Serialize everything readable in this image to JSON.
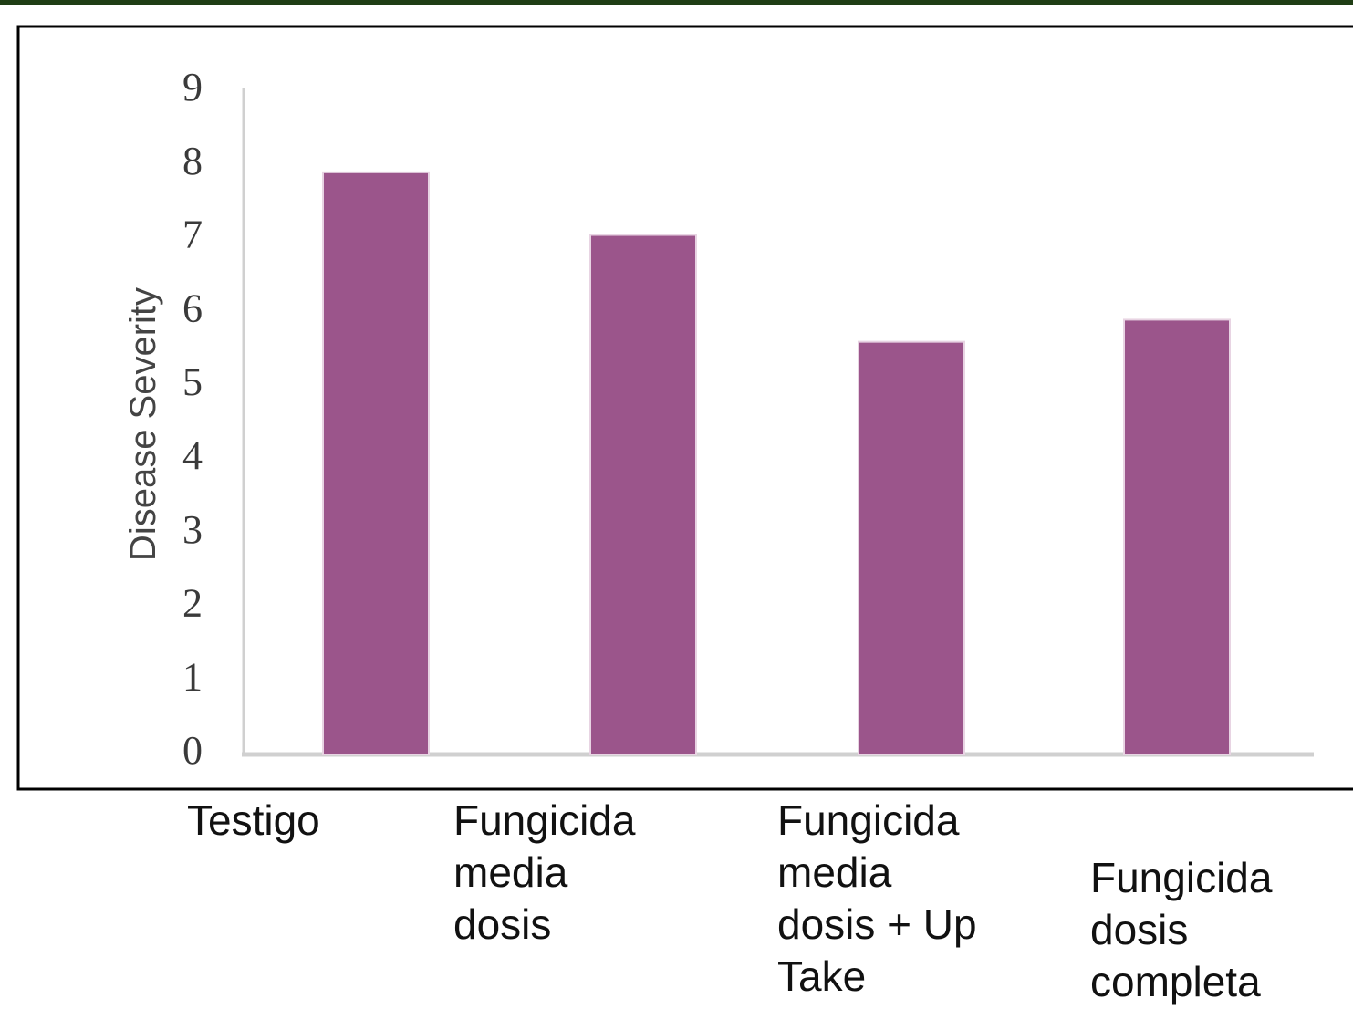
{
  "chart_data": {
    "type": "bar",
    "y_axis_label": "Disease Severity",
    "categories": [
      "Testigo",
      "Fungicida media dosis",
      "Fungicida media dosis + Up Take",
      "Fungicida dosis completa"
    ],
    "values": [
      7.9,
      7.05,
      5.6,
      5.9
    ],
    "color": "#9b558b",
    "ylim": [
      0,
      9
    ],
    "yticks": [
      0,
      1,
      2,
      3,
      4,
      5,
      6,
      7,
      8,
      9
    ],
    "grid": false
  }
}
